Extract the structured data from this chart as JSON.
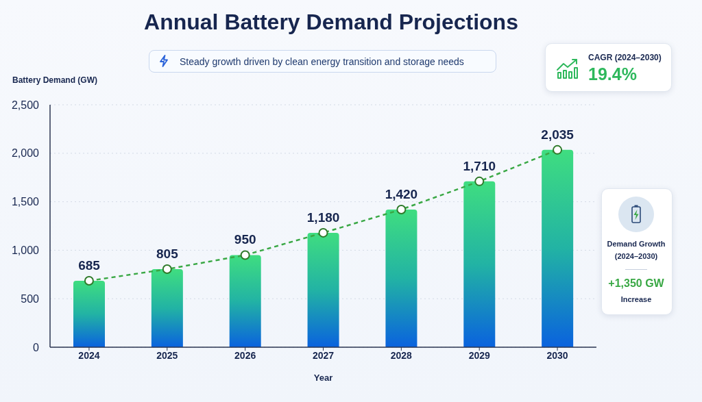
{
  "chart_data": {
    "type": "bar",
    "title": "Annual Battery Demand Projections",
    "subtitle": "Steady growth driven by clean energy transition and storage needs",
    "xlabel": "Year",
    "ylabel": "Battery Demand (GW)",
    "categories": [
      "2024",
      "2025",
      "2026",
      "2027",
      "2028",
      "2029",
      "2030"
    ],
    "series": [
      {
        "color": "#22b3a4",
        "values": [
          685,
          805,
          950,
          1180,
          1420,
          1710,
          2035
        ],
        "value_labels": [
          "685",
          "805",
          "950",
          "1,180",
          "1,420",
          "1,710",
          "2,035"
        ]
      },
      {
        "type": "line",
        "color": "#3aa845",
        "values": [
          685,
          805,
          950,
          1180,
          1420,
          1710,
          2035
        ]
      }
    ],
    "ylim": [
      0,
      2500
    ],
    "yticks": [
      0,
      500,
      {
        "value": 1000,
        "label": "1,000"
      },
      {
        "value": 1500,
        "label": "1,500"
      },
      {
        "value": 2000,
        "label": "2,000"
      },
      {
        "value": 2500,
        "label": "2,500"
      }
    ],
    "grid": "y",
    "marker": "circle",
    "line_style": "dashed",
    "annotations": [
      "CAGR (2024–2030)",
      "19.4%",
      "Demand Growth (2024–2030)",
      "+1,350 GW",
      "Increase"
    ]
  }
}
